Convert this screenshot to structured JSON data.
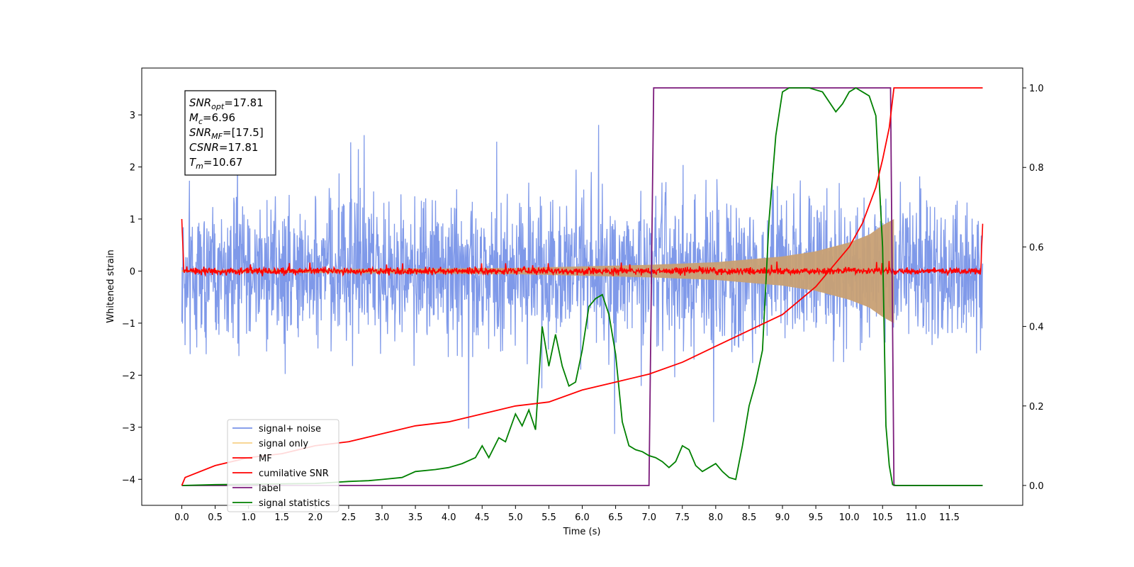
{
  "chart_data": {
    "type": "line",
    "xlabel": "Time (s)",
    "ylabel": "Whitened strain",
    "xlim": [
      -0.6,
      12.6
    ],
    "ylim": [
      -4.5,
      3.9
    ],
    "ylim_right": [
      -0.05,
      1.05
    ],
    "x_ticks": [
      0.0,
      0.5,
      1.0,
      1.5,
      2.0,
      2.5,
      3.0,
      3.5,
      4.0,
      4.5,
      5.0,
      5.5,
      6.0,
      6.5,
      7.0,
      7.5,
      8.0,
      8.5,
      9.0,
      9.5,
      10.0,
      10.5,
      11.0,
      11.5
    ],
    "x_tick_labels": [
      "0.0",
      "0.5",
      "1.0",
      "1.5",
      "2.0",
      "2.5",
      "3.0",
      "3.5",
      "4.0",
      "4.5",
      "5.0",
      "5.5",
      "6.0",
      "6.5",
      "7.0",
      "7.5",
      "8.0",
      "8.5",
      "9.0",
      "9.5",
      "10.0",
      "10.5",
      "11.0",
      "11.5"
    ],
    "y_ticks_left": [
      -4,
      -3,
      -2,
      -1,
      0,
      1,
      2,
      3
    ],
    "y_tick_labels_left": [
      "−4",
      "−3",
      "−2",
      "−1",
      "0",
      "1",
      "2",
      "3"
    ],
    "y_ticks_right": [
      0.0,
      0.2,
      0.4,
      0.6,
      0.8,
      1.0
    ],
    "y_tick_labels_right": [
      "0.0",
      "0.2",
      "0.4",
      "0.6",
      "0.8",
      "1.0"
    ],
    "grid": false,
    "legend_position": "lower-left",
    "series": [
      {
        "name": "signal+ noise",
        "color": "#7893e8",
        "axis": "left",
        "kind": "noise band",
        "x_range": [
          0.0,
          12.0
        ],
        "envelope_max": 3.6,
        "envelope_min": -3.4,
        "typical_upper": 2.0,
        "typical_lower": -2.0
      },
      {
        "name": "signal only",
        "color": "#f5c56a",
        "axis": "left",
        "kind": "chirp",
        "x_range": [
          0.0,
          10.67
        ],
        "amplitude_points": [
          [
            0.0,
            0.02
          ],
          [
            5.0,
            0.06
          ],
          [
            7.0,
            0.12
          ],
          [
            8.0,
            0.17
          ],
          [
            9.0,
            0.28
          ],
          [
            9.5,
            0.38
          ],
          [
            10.0,
            0.55
          ],
          [
            10.3,
            0.7
          ],
          [
            10.5,
            0.88
          ],
          [
            10.67,
            1.0
          ]
        ]
      },
      {
        "name": "MF",
        "color": "#ff0000",
        "axis": "left",
        "kind": "noisy line",
        "x_range": [
          0.0,
          12.0
        ],
        "start_value": 1.0,
        "end_value": 0.9,
        "baseline": 0.0,
        "fluctuation": 0.1
      },
      {
        "name": "cumilative SNR",
        "color": "#ff0000",
        "axis": "right",
        "x": [
          0.0,
          0.05,
          0.5,
          1.0,
          1.5,
          2.0,
          2.5,
          3.0,
          3.5,
          4.0,
          4.5,
          5.0,
          5.5,
          6.0,
          6.5,
          7.0,
          7.5,
          8.0,
          8.5,
          9.0,
          9.5,
          10.0,
          10.2,
          10.4,
          10.5,
          10.6,
          10.67,
          10.7,
          12.0
        ],
        "y": [
          0.0,
          0.02,
          0.05,
          0.07,
          0.08,
          0.1,
          0.11,
          0.13,
          0.15,
          0.16,
          0.18,
          0.2,
          0.21,
          0.24,
          0.26,
          0.28,
          0.31,
          0.35,
          0.39,
          0.43,
          0.5,
          0.6,
          0.66,
          0.75,
          0.82,
          0.9,
          1.0,
          1.0,
          1.0
        ]
      },
      {
        "name": "label",
        "color": "#7b1a7b",
        "axis": "right",
        "x": [
          0.0,
          7.0,
          7.07,
          10.62,
          10.67,
          12.0
        ],
        "y": [
          0.0,
          0.0,
          1.0,
          1.0,
          0.0,
          0.0
        ]
      },
      {
        "name": "signal statistics",
        "color": "#008000",
        "axis": "right",
        "x": [
          0.0,
          0.5,
          1.0,
          1.5,
          2.0,
          2.3,
          2.5,
          2.8,
          3.0,
          3.3,
          3.5,
          3.8,
          4.0,
          4.2,
          4.4,
          4.5,
          4.6,
          4.75,
          4.85,
          5.0,
          5.1,
          5.2,
          5.3,
          5.4,
          5.5,
          5.6,
          5.7,
          5.8,
          5.9,
          6.0,
          6.1,
          6.2,
          6.3,
          6.4,
          6.45,
          6.5,
          6.6,
          6.7,
          6.8,
          6.9,
          7.0,
          7.1,
          7.2,
          7.3,
          7.4,
          7.5,
          7.6,
          7.7,
          7.8,
          7.9,
          8.0,
          8.1,
          8.2,
          8.3,
          8.4,
          8.5,
          8.6,
          8.7,
          8.8,
          8.9,
          9.0,
          9.1,
          9.2,
          9.4,
          9.6,
          9.8,
          9.9,
          10.0,
          10.1,
          10.2,
          10.3,
          10.4,
          10.5,
          10.55,
          10.6,
          10.65,
          10.7,
          12.0
        ],
        "y": [
          0.0,
          0.002,
          0.003,
          0.004,
          0.005,
          0.008,
          0.01,
          0.012,
          0.015,
          0.02,
          0.035,
          0.04,
          0.045,
          0.055,
          0.07,
          0.1,
          0.07,
          0.12,
          0.11,
          0.18,
          0.15,
          0.19,
          0.14,
          0.4,
          0.3,
          0.38,
          0.3,
          0.25,
          0.26,
          0.34,
          0.45,
          0.47,
          0.48,
          0.43,
          0.38,
          0.33,
          0.16,
          0.1,
          0.09,
          0.085,
          0.075,
          0.07,
          0.06,
          0.045,
          0.06,
          0.1,
          0.09,
          0.05,
          0.035,
          0.045,
          0.055,
          0.035,
          0.02,
          0.015,
          0.1,
          0.2,
          0.26,
          0.34,
          0.67,
          0.88,
          0.99,
          1.0,
          1.0,
          1.0,
          0.99,
          0.94,
          0.96,
          0.99,
          1.0,
          0.99,
          0.98,
          0.93,
          0.6,
          0.15,
          0.05,
          0.002,
          0.0,
          0.0
        ]
      }
    ],
    "annotation": {
      "lines": [
        {
          "sym": "SNR",
          "sub": "opt",
          "val": "=17.81"
        },
        {
          "sym": "M",
          "sub": "c",
          "val": "=6.96"
        },
        {
          "sym": "SNR",
          "sub": "MF",
          "val": "=[17.5]"
        },
        {
          "sym": "CSNR",
          "sub": "",
          "val": "=17.81"
        },
        {
          "sym": "T",
          "sub": "m",
          "val": "=10.67"
        }
      ]
    }
  }
}
